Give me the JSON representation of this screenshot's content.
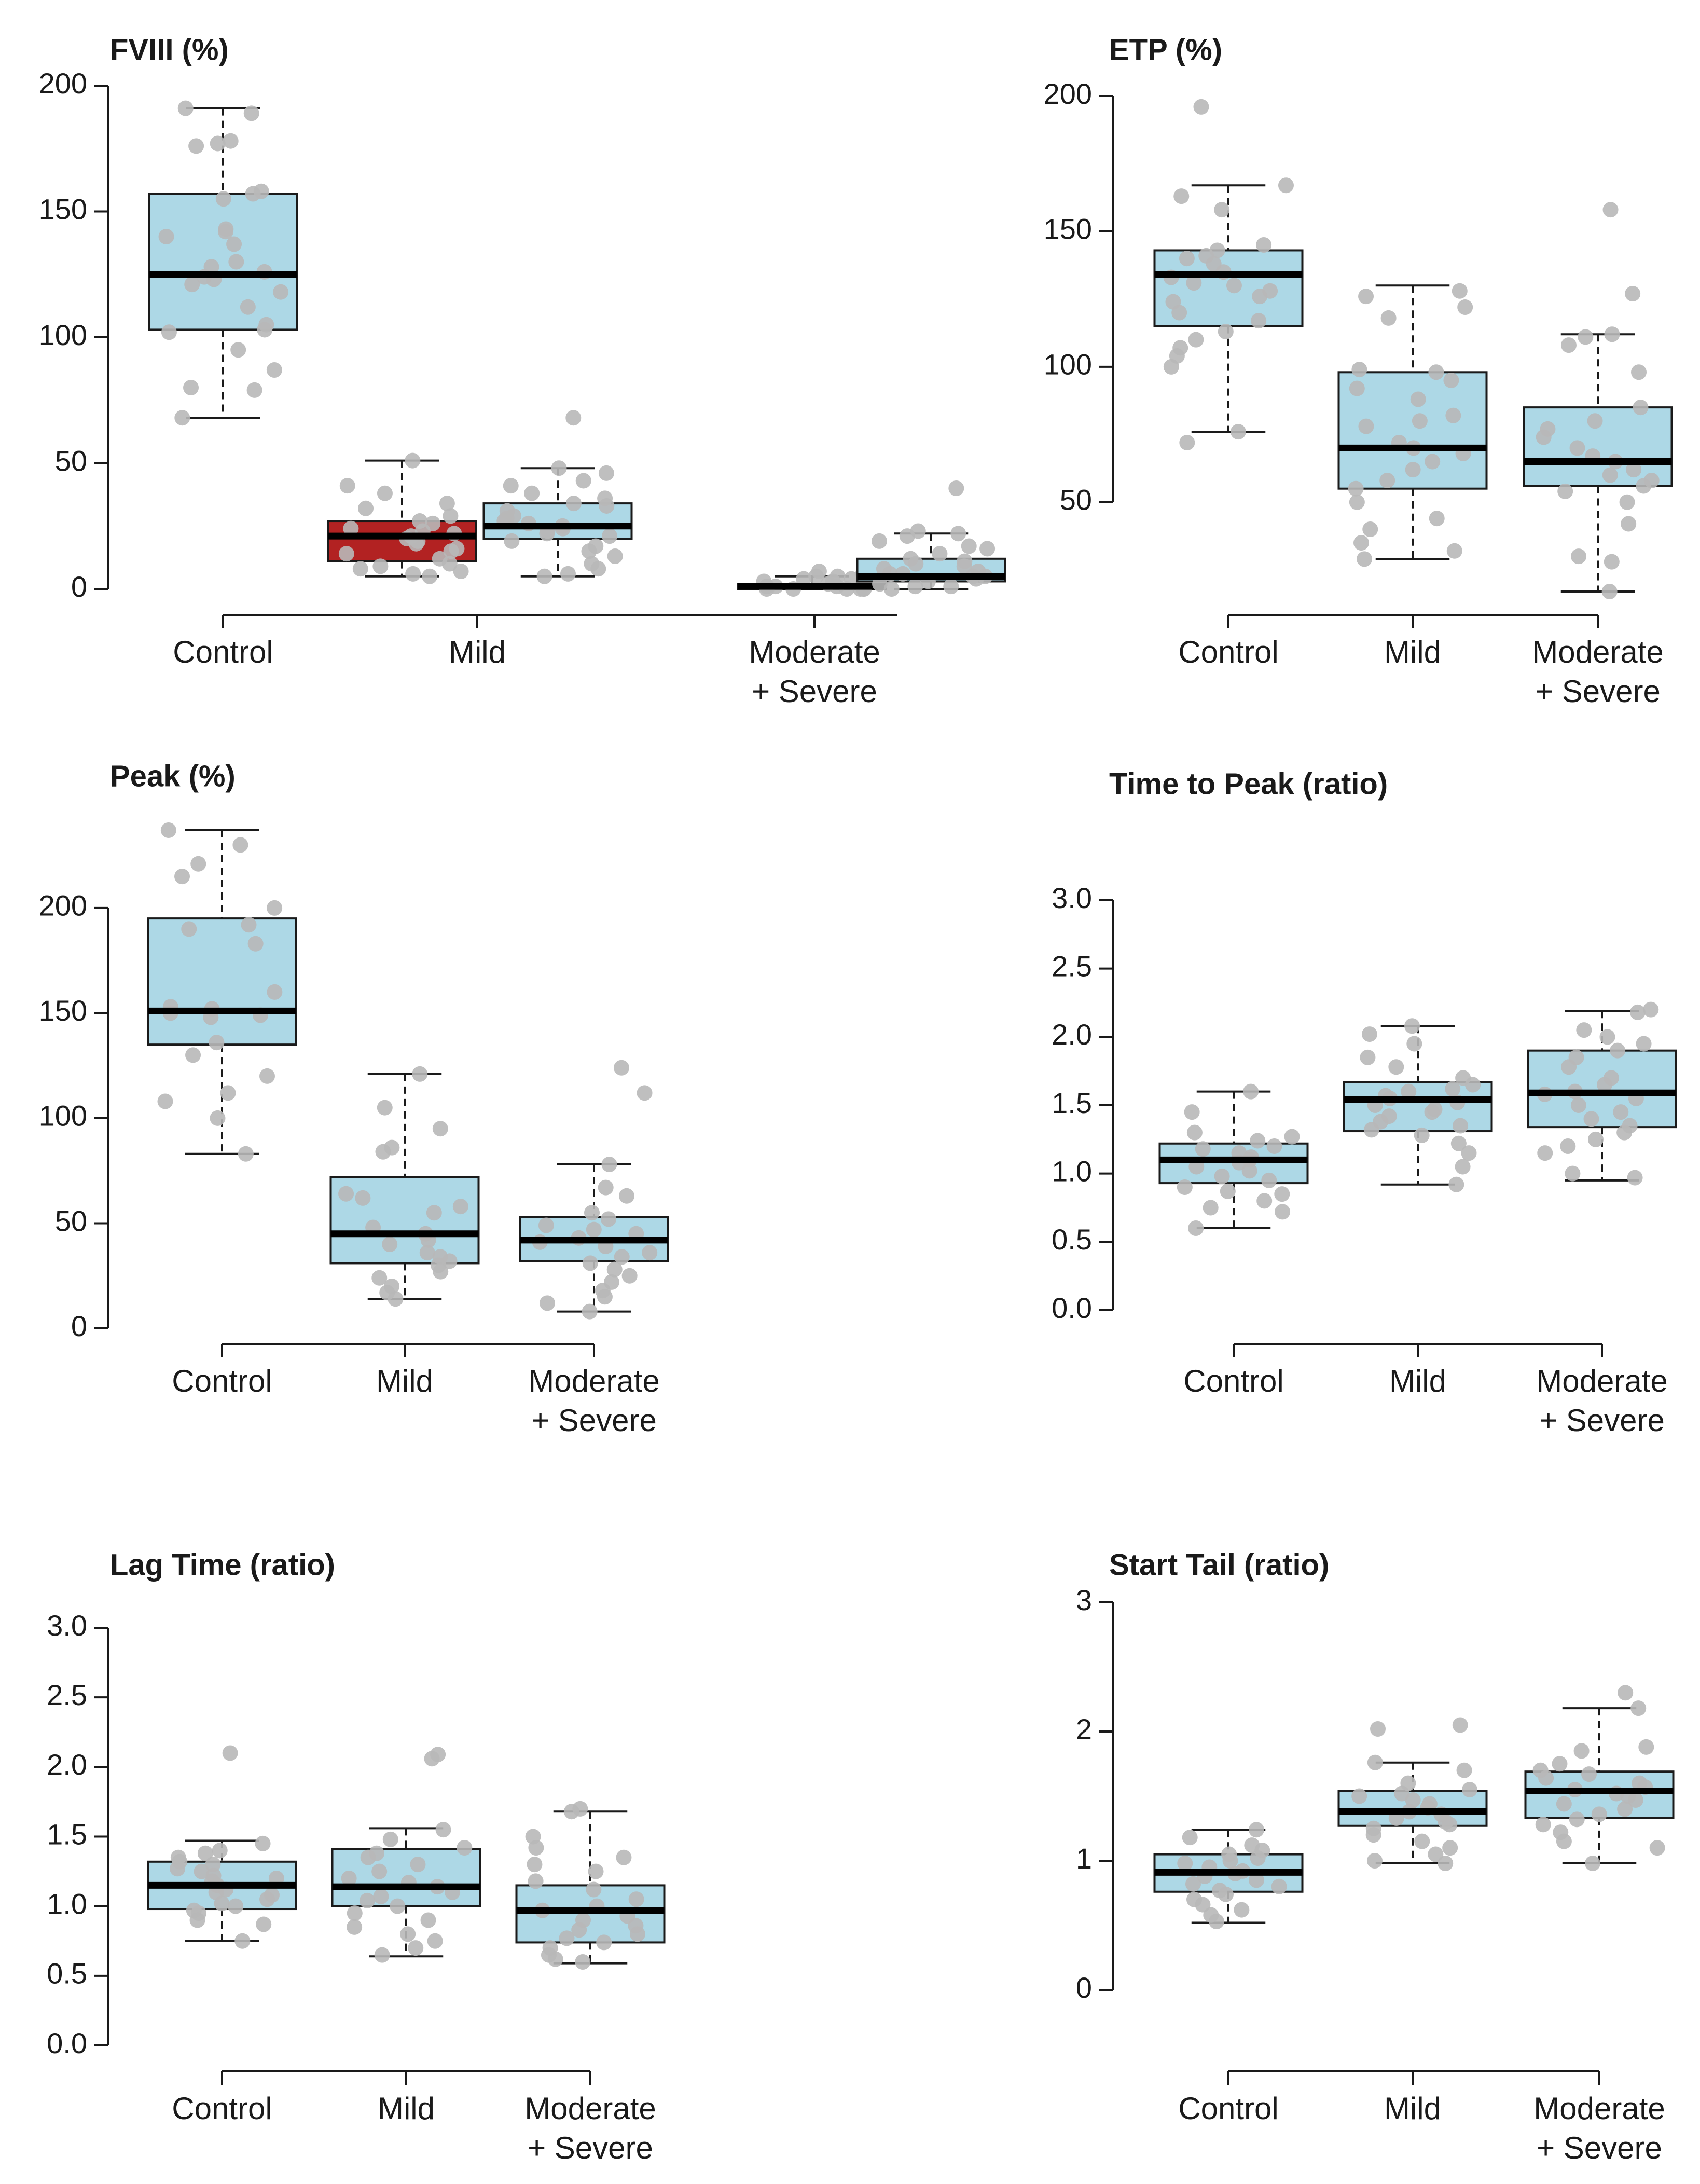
{
  "chart_data": [
    {
      "type": "box",
      "title": "FVIII (%)",
      "categories": [
        "Control",
        "Mild",
        "Moderate\n+ Severe"
      ],
      "yticks": [
        0,
        50,
        100,
        150,
        200
      ],
      "ylim": [
        0,
        200
      ],
      "colors": {
        "box": "#add8e6",
        "highlight": "#b22222",
        "points": "#b8b8b8",
        "median": "#000000"
      },
      "boxes": [
        {
          "category": "Control",
          "fill": "#add8e6",
          "min": 68,
          "q1": 103,
          "median": 125,
          "q3": 157,
          "max": 191,
          "points": [
            191,
            189,
            178,
            177,
            176,
            158,
            157,
            155,
            143,
            142,
            140,
            137,
            130,
            128,
            126,
            124,
            123,
            121,
            118,
            112,
            105,
            103,
            102,
            95,
            87,
            80,
            79,
            68
          ]
        },
        {
          "category": "Mild",
          "fill": "#b22222",
          "min": 5,
          "q1": 11,
          "median": 21,
          "q3": 27,
          "max": 51,
          "points": [
            51,
            41,
            38,
            34,
            32,
            29,
            27,
            26,
            24,
            23,
            22,
            21,
            20,
            19,
            18,
            16,
            15,
            14,
            12,
            10,
            9,
            8,
            7,
            6,
            5
          ]
        },
        {
          "category": "Mild",
          "fill": "#add8e6",
          "min": 5,
          "q1": 20,
          "median": 25,
          "q3": 34,
          "max": 48,
          "points": [
            68,
            48,
            46,
            43,
            41,
            38,
            36,
            34,
            33,
            31,
            29,
            28,
            27,
            26,
            25,
            24,
            23,
            22,
            21,
            19,
            17,
            15,
            13,
            10,
            8,
            6,
            5
          ]
        },
        {
          "category": "Moderate\n+ Severe",
          "fill": "#add8e6",
          "min": 0,
          "q1": 0,
          "median": 1,
          "q3": 2,
          "max": 5,
          "points": [
            7,
            6,
            5,
            5,
            4,
            4,
            3,
            3,
            2,
            2,
            2,
            1,
            1,
            1,
            1,
            0,
            0,
            0,
            0,
            0,
            0
          ]
        },
        {
          "category": "Moderate\n+ Severe",
          "fill": "#add8e6",
          "min": 0,
          "q1": 3,
          "median": 5,
          "q3": 12,
          "max": 22,
          "points": [
            40,
            23,
            22,
            21,
            19,
            17,
            16,
            14,
            12,
            11,
            10,
            9,
            8,
            7,
            6,
            6,
            5,
            5,
            4,
            3,
            2,
            1,
            1,
            0
          ]
        }
      ]
    },
    {
      "type": "box",
      "title": "ETP (%)",
      "categories": [
        "Control",
        "Mild",
        "Moderate\n+ Severe"
      ],
      "yticks": [
        50,
        100,
        150,
        200
      ],
      "ylim": [
        17,
        200
      ],
      "colors": {
        "box": "#add8e6",
        "points": "#b8b8b8",
        "median": "#000000"
      },
      "boxes": [
        {
          "category": "Control",
          "fill": "#add8e6",
          "min": 76,
          "q1": 115,
          "median": 134,
          "q3": 143,
          "max": 167,
          "points": [
            196,
            167,
            163,
            158,
            145,
            143,
            141,
            140,
            138,
            135,
            133,
            131,
            130,
            128,
            126,
            124,
            120,
            117,
            113,
            110,
            107,
            104,
            100,
            76,
            72
          ]
        },
        {
          "category": "Mild",
          "fill": "#add8e6",
          "min": 29,
          "q1": 55,
          "median": 70,
          "q3": 98,
          "max": 130,
          "points": [
            128,
            126,
            122,
            118,
            99,
            98,
            95,
            92,
            88,
            82,
            80,
            78,
            72,
            70,
            68,
            65,
            62,
            58,
            55,
            50,
            44,
            40,
            35,
            32,
            29
          ]
        },
        {
          "category": "Moderate\n+ Severe",
          "fill": "#add8e6",
          "min": 17,
          "q1": 56,
          "median": 65,
          "q3": 85,
          "max": 112,
          "points": [
            158,
            127,
            112,
            111,
            108,
            98,
            85,
            80,
            77,
            74,
            70,
            67,
            65,
            62,
            60,
            58,
            56,
            54,
            50,
            42,
            30,
            28,
            17
          ]
        }
      ]
    },
    {
      "type": "box",
      "title": "Peak (%)",
      "categories": [
        "Control",
        "Mild",
        "Moderate\n+ Severe"
      ],
      "yticks": [
        0,
        50,
        100,
        150,
        200
      ],
      "ylim": [
        0,
        237
      ],
      "colors": {
        "box": "#add8e6",
        "points": "#b8b8b8",
        "median": "#000000"
      },
      "boxes": [
        {
          "category": "Control",
          "fill": "#add8e6",
          "min": 83,
          "q1": 135,
          "median": 151,
          "q3": 195,
          "max": 237,
          "points": [
            237,
            230,
            221,
            215,
            200,
            192,
            190,
            183,
            160,
            153,
            152,
            150,
            149,
            148,
            136,
            130,
            120,
            112,
            108,
            100,
            83
          ]
        },
        {
          "category": "Mild",
          "fill": "#add8e6",
          "min": 14,
          "q1": 31,
          "median": 45,
          "q3": 72,
          "max": 121,
          "points": [
            121,
            105,
            95,
            86,
            84,
            64,
            62,
            58,
            55,
            48,
            45,
            42,
            40,
            36,
            34,
            32,
            30,
            27,
            24,
            20,
            17,
            14
          ]
        },
        {
          "category": "Moderate\n+ Severe",
          "fill": "#add8e6",
          "min": 8,
          "q1": 32,
          "median": 42,
          "q3": 53,
          "max": 78,
          "points": [
            124,
            112,
            78,
            67,
            63,
            55,
            52,
            49,
            47,
            45,
            43,
            41,
            39,
            36,
            34,
            31,
            28,
            25,
            22,
            18,
            15,
            12,
            8
          ]
        }
      ]
    },
    {
      "type": "box",
      "title": "Time to Peak (ratio)",
      "categories": [
        "Control",
        "Mild",
        "Moderate\n+ Severe"
      ],
      "yticks": [
        0.0,
        0.5,
        1.0,
        1.5,
        2.0,
        2.5,
        3.0
      ],
      "ytick_labels": [
        "0.0",
        "0.5",
        "1.0",
        "1.5",
        "2.0",
        "2.5",
        "3.0"
      ],
      "ylim": [
        0,
        3
      ],
      "colors": {
        "box": "#add8e6",
        "points": "#b8b8b8",
        "median": "#000000"
      },
      "boxes": [
        {
          "category": "Control",
          "fill": "#add8e6",
          "min": 0.6,
          "q1": 0.93,
          "median": 1.1,
          "q3": 1.22,
          "max": 1.6,
          "points": [
            1.6,
            1.45,
            1.3,
            1.27,
            1.24,
            1.2,
            1.18,
            1.15,
            1.12,
            1.1,
            1.08,
            1.05,
            1.02,
            0.98,
            0.95,
            0.9,
            0.87,
            0.85,
            0.8,
            0.75,
            0.72,
            0.6
          ]
        },
        {
          "category": "Mild",
          "fill": "#add8e6",
          "min": 0.92,
          "q1": 1.31,
          "median": 1.54,
          "q3": 1.67,
          "max": 2.08,
          "points": [
            2.08,
            2.02,
            1.95,
            1.85,
            1.78,
            1.7,
            1.65,
            1.62,
            1.6,
            1.57,
            1.55,
            1.52,
            1.5,
            1.47,
            1.45,
            1.42,
            1.38,
            1.35,
            1.32,
            1.28,
            1.22,
            1.15,
            1.05,
            0.92
          ]
        },
        {
          "category": "Moderate\n+ Severe",
          "fill": "#add8e6",
          "min": 0.95,
          "q1": 1.34,
          "median": 1.59,
          "q3": 1.9,
          "max": 2.19,
          "points": [
            2.2,
            2.18,
            2.05,
            2.0,
            1.95,
            1.9,
            1.85,
            1.78,
            1.7,
            1.65,
            1.6,
            1.58,
            1.55,
            1.5,
            1.45,
            1.4,
            1.35,
            1.3,
            1.25,
            1.2,
            1.15,
            1.0,
            0.97
          ]
        }
      ]
    },
    {
      "type": "box",
      "title": "Lag Time (ratio)",
      "categories": [
        "Control",
        "Mild",
        "Moderate\n+ Severe"
      ],
      "yticks": [
        0.0,
        0.5,
        1.0,
        1.5,
        2.0,
        2.5,
        3.0
      ],
      "ytick_labels": [
        "0.0",
        "0.5",
        "1.0",
        "1.5",
        "2.0",
        "2.5",
        "3.0"
      ],
      "ylim": [
        0,
        3
      ],
      "colors": {
        "box": "#add8e6",
        "points": "#b8b8b8",
        "median": "#000000"
      },
      "boxes": [
        {
          "category": "Control",
          "fill": "#add8e6",
          "min": 0.75,
          "q1": 0.98,
          "median": 1.15,
          "q3": 1.32,
          "max": 1.47,
          "points": [
            2.1,
            1.45,
            1.4,
            1.38,
            1.35,
            1.32,
            1.3,
            1.27,
            1.25,
            1.22,
            1.2,
            1.18,
            1.15,
            1.12,
            1.1,
            1.08,
            1.05,
            1.02,
            1.0,
            0.97,
            0.95,
            0.9,
            0.87,
            0.75
          ]
        },
        {
          "category": "Mild",
          "fill": "#add8e6",
          "min": 0.64,
          "q1": 1.0,
          "median": 1.14,
          "q3": 1.41,
          "max": 1.56,
          "points": [
            2.09,
            2.06,
            1.55,
            1.48,
            1.42,
            1.38,
            1.35,
            1.3,
            1.25,
            1.2,
            1.17,
            1.14,
            1.1,
            1.07,
            1.04,
            1.0,
            0.95,
            0.9,
            0.85,
            0.8,
            0.75,
            0.7,
            0.65
          ]
        },
        {
          "category": "Moderate\n+ Severe",
          "fill": "#add8e6",
          "min": 0.59,
          "q1": 0.74,
          "median": 0.97,
          "q3": 1.15,
          "max": 1.68,
          "points": [
            1.7,
            1.68,
            1.5,
            1.42,
            1.35,
            1.3,
            1.25,
            1.18,
            1.12,
            1.05,
            1.0,
            0.97,
            0.93,
            0.9,
            0.86,
            0.83,
            0.8,
            0.77,
            0.74,
            0.7,
            0.65,
            0.62,
            0.6
          ]
        }
      ]
    },
    {
      "type": "box",
      "title": "Start Tail (ratio)",
      "categories": [
        "Control",
        "Mild",
        "Moderate\n+ Severe"
      ],
      "yticks": [
        0,
        1,
        2,
        3
      ],
      "ylim": [
        0,
        3
      ],
      "colors": {
        "box": "#add8e6",
        "points": "#b8b8b8",
        "median": "#000000"
      },
      "boxes": [
        {
          "category": "Control",
          "fill": "#add8e6",
          "min": 0.52,
          "q1": 0.76,
          "median": 0.91,
          "q3": 1.05,
          "max": 1.24,
          "points": [
            1.24,
            1.18,
            1.12,
            1.08,
            1.05,
            1.02,
            1.0,
            0.98,
            0.95,
            0.92,
            0.9,
            0.88,
            0.85,
            0.82,
            0.8,
            0.77,
            0.74,
            0.7,
            0.66,
            0.62,
            0.58,
            0.53
          ]
        },
        {
          "category": "Mild",
          "fill": "#add8e6",
          "min": 0.98,
          "q1": 1.27,
          "median": 1.38,
          "q3": 1.54,
          "max": 1.76,
          "points": [
            2.05,
            2.02,
            1.76,
            1.7,
            1.6,
            1.55,
            1.52,
            1.5,
            1.47,
            1.44,
            1.41,
            1.38,
            1.36,
            1.33,
            1.3,
            1.28,
            1.25,
            1.2,
            1.15,
            1.1,
            1.05,
            1.0,
            0.98
          ]
        },
        {
          "category": "Moderate\n+ Severe",
          "fill": "#add8e6",
          "min": 0.98,
          "q1": 1.33,
          "median": 1.54,
          "q3": 1.69,
          "max": 2.18,
          "points": [
            2.3,
            2.18,
            1.88,
            1.85,
            1.75,
            1.7,
            1.67,
            1.64,
            1.6,
            1.57,
            1.55,
            1.52,
            1.5,
            1.47,
            1.44,
            1.4,
            1.36,
            1.32,
            1.28,
            1.22,
            1.15,
            1.1,
            0.98
          ]
        }
      ]
    }
  ]
}
